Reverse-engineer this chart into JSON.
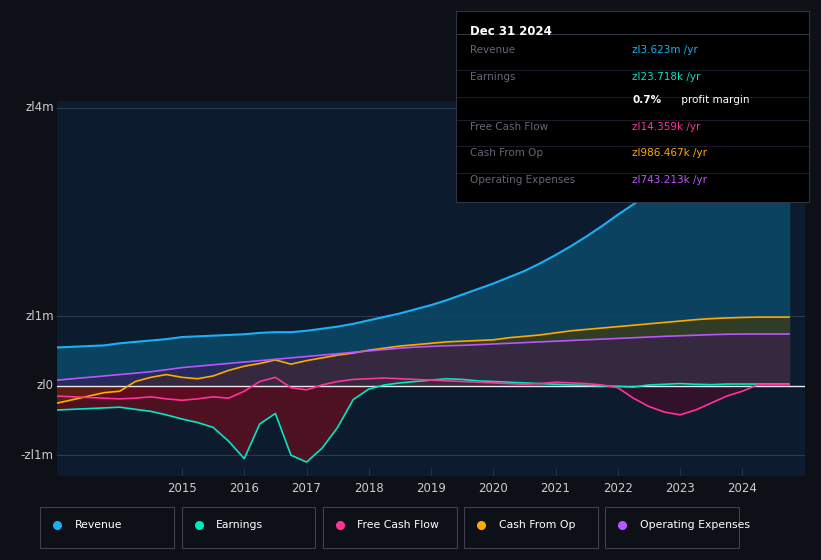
{
  "bg_color": "#0d1117",
  "plot_bg_color": "#0d1b2e",
  "years": [
    2013.0,
    2013.25,
    2013.5,
    2013.75,
    2014.0,
    2014.25,
    2014.5,
    2014.75,
    2015.0,
    2015.25,
    2015.5,
    2015.75,
    2016.0,
    2016.25,
    2016.5,
    2016.75,
    2017.0,
    2017.25,
    2017.5,
    2017.75,
    2018.0,
    2018.25,
    2018.5,
    2018.75,
    2019.0,
    2019.25,
    2019.5,
    2019.75,
    2020.0,
    2020.25,
    2020.5,
    2020.75,
    2021.0,
    2021.25,
    2021.5,
    2021.75,
    2022.0,
    2022.25,
    2022.5,
    2022.75,
    2023.0,
    2023.25,
    2023.5,
    2023.75,
    2024.0,
    2024.25,
    2024.5,
    2024.75
  ],
  "revenue": [
    550000,
    560000,
    570000,
    580000,
    610000,
    630000,
    650000,
    670000,
    700000,
    710000,
    720000,
    730000,
    740000,
    760000,
    770000,
    770000,
    790000,
    820000,
    850000,
    890000,
    940000,
    990000,
    1040000,
    1100000,
    1160000,
    1230000,
    1310000,
    1390000,
    1470000,
    1560000,
    1650000,
    1760000,
    1880000,
    2010000,
    2150000,
    2300000,
    2460000,
    2610000,
    2760000,
    2900000,
    3020000,
    3140000,
    3260000,
    3380000,
    3480000,
    3540000,
    3580000,
    3623000
  ],
  "earnings": [
    -350000,
    -340000,
    -330000,
    -320000,
    -310000,
    -340000,
    -370000,
    -420000,
    -480000,
    -530000,
    -600000,
    -800000,
    -1050000,
    -550000,
    -400000,
    -1000000,
    -1100000,
    -900000,
    -600000,
    -200000,
    -50000,
    10000,
    40000,
    60000,
    80000,
    100000,
    90000,
    70000,
    60000,
    50000,
    40000,
    30000,
    20000,
    10000,
    5000,
    -5000,
    -10000,
    -20000,
    10000,
    20000,
    30000,
    20000,
    15000,
    23718,
    23718,
    23718,
    23718,
    23718
  ],
  "free_cash_flow": [
    -150000,
    -160000,
    -170000,
    -180000,
    -190000,
    -180000,
    -160000,
    -190000,
    -210000,
    -190000,
    -160000,
    -180000,
    -80000,
    60000,
    120000,
    -30000,
    -60000,
    10000,
    60000,
    90000,
    100000,
    110000,
    100000,
    90000,
    80000,
    70000,
    60000,
    50000,
    40000,
    30000,
    20000,
    30000,
    50000,
    40000,
    30000,
    10000,
    -30000,
    -180000,
    -300000,
    -380000,
    -420000,
    -350000,
    -250000,
    -150000,
    -80000,
    14359,
    14359,
    14359
  ],
  "cash_from_op": [
    -250000,
    -200000,
    -150000,
    -100000,
    -80000,
    60000,
    120000,
    160000,
    120000,
    100000,
    140000,
    220000,
    280000,
    320000,
    370000,
    310000,
    360000,
    400000,
    440000,
    470000,
    510000,
    540000,
    570000,
    590000,
    610000,
    630000,
    640000,
    650000,
    660000,
    690000,
    710000,
    730000,
    760000,
    790000,
    810000,
    830000,
    850000,
    870000,
    890000,
    910000,
    930000,
    950000,
    965000,
    975000,
    982000,
    986467,
    986467,
    986467
  ],
  "operating_expenses": [
    80000,
    100000,
    120000,
    140000,
    160000,
    180000,
    200000,
    230000,
    260000,
    280000,
    300000,
    320000,
    340000,
    360000,
    380000,
    400000,
    420000,
    440000,
    460000,
    480000,
    500000,
    520000,
    540000,
    555000,
    565000,
    575000,
    580000,
    590000,
    600000,
    610000,
    620000,
    630000,
    640000,
    650000,
    660000,
    670000,
    680000,
    690000,
    700000,
    710000,
    718000,
    726000,
    734000,
    740000,
    743213,
    743213,
    743213,
    743213
  ],
  "revenue_color": "#1ab0f5",
  "earnings_color": "#00e8c0",
  "free_cash_flow_color": "#ff3399",
  "cash_from_op_color": "#ffaa00",
  "operating_expenses_color": "#bb55ff",
  "revenue_fill_alpha": 0.9,
  "earnings_fill_neg_color": "#5a1020",
  "earnings_fill_pos_color": "#1a5a40",
  "cash_from_op_fill_color": "#4a3800",
  "operating_expenses_fill_color": "#3a1a55",
  "fcf_fill_alpha": 0.35,
  "text_color": "#cccccc",
  "dim_text_color": "#666677",
  "ytick_labels": [
    "zl4m",
    "zl1m",
    "zl0",
    "-zl1m"
  ],
  "ytick_values": [
    4000000,
    1000000,
    0,
    -1000000
  ],
  "xlabel_years": [
    2015,
    2016,
    2017,
    2018,
    2019,
    2020,
    2021,
    2022,
    2023,
    2024
  ],
  "xmin": 2013.0,
  "xmax": 2025.0,
  "ymin": -1300000,
  "ymax": 4100000,
  "legend_items": [
    {
      "label": "Revenue",
      "color": "#1ab0f5"
    },
    {
      "label": "Earnings",
      "color": "#00e8c0"
    },
    {
      "label": "Free Cash Flow",
      "color": "#ff3399"
    },
    {
      "label": "Cash From Op",
      "color": "#ffaa00"
    },
    {
      "label": "Operating Expenses",
      "color": "#bb55ff"
    }
  ],
  "info_box": {
    "title": "Dec 31 2024",
    "rows": [
      {
        "label": "Revenue",
        "value": "zl3.623m /yr",
        "value_color": "#1ab0f5",
        "dim_label": false
      },
      {
        "label": "Earnings",
        "value": "zl23.718k /yr",
        "value_color": "#00e8c0",
        "dim_label": false
      },
      {
        "label": "",
        "value_left": "0.7%",
        "value_right": " profit margin",
        "value_color": "#ffffff",
        "dim_label": false
      },
      {
        "label": "Free Cash Flow",
        "value": "zl14.359k /yr",
        "value_color": "#ff3399",
        "dim_label": true
      },
      {
        "label": "Cash From Op",
        "value": "zl986.467k /yr",
        "value_color": "#ffaa00",
        "dim_label": true
      },
      {
        "label": "Operating Expenses",
        "value": "zl743.213k /yr",
        "value_color": "#bb55ff",
        "dim_label": true
      }
    ]
  }
}
